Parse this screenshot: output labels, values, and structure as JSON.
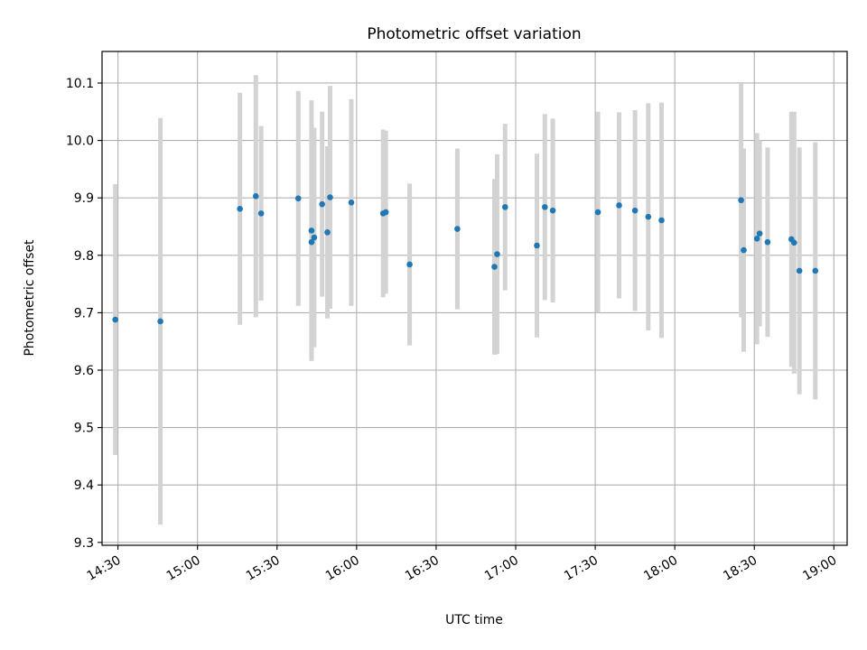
{
  "chart_data": {
    "type": "scatter",
    "title": "Photometric offset variation",
    "xlabel": "UTC time",
    "ylabel": "Photometric offset",
    "x_is_time": true,
    "xlim": [
      "14:24",
      "19:05"
    ],
    "ylim": [
      9.295,
      10.155
    ],
    "grid": true,
    "x_ticks": [
      "14:30",
      "15:00",
      "15:30",
      "16:00",
      "16:30",
      "17:00",
      "17:30",
      "18:00",
      "18:30",
      "19:00"
    ],
    "y_ticks": [
      9.3,
      9.4,
      9.5,
      9.6,
      9.7,
      9.8,
      9.9,
      10.0,
      10.1
    ],
    "y_tick_labels": [
      "9.3",
      "9.4",
      "9.5",
      "9.6",
      "9.7",
      "9.8",
      "9.9",
      "10.0",
      "10.1"
    ],
    "colors": {
      "point": "#1f77b4",
      "errorbar": "#d3d3d3",
      "grid": "#b0b0b0"
    },
    "points": [
      {
        "t": "14:29",
        "y": 9.688,
        "err": 0.236
      },
      {
        "t": "14:46",
        "y": 9.685,
        "err": 0.354
      },
      {
        "t": "15:16",
        "y": 9.881,
        "err": 0.202
      },
      {
        "t": "15:22",
        "y": 9.903,
        "err": 0.211
      },
      {
        "t": "15:24",
        "y": 9.873,
        "err": 0.152
      },
      {
        "t": "15:38",
        "y": 9.899,
        "err": 0.187
      },
      {
        "t": "15:43",
        "y": 9.843,
        "err": 0.227
      },
      {
        "t": "15:43",
        "y": 9.823,
        "err": 0.202
      },
      {
        "t": "15:44",
        "y": 9.831,
        "err": 0.191
      },
      {
        "t": "15:47",
        "y": 9.889,
        "err": 0.161
      },
      {
        "t": "15:49",
        "y": 9.84,
        "err": 0.15
      },
      {
        "t": "15:50",
        "y": 9.901,
        "err": 0.194
      },
      {
        "t": "15:58",
        "y": 9.892,
        "err": 0.18
      },
      {
        "t": "16:10",
        "y": 9.873,
        "err": 0.146
      },
      {
        "t": "16:11",
        "y": 9.875,
        "err": 0.142
      },
      {
        "t": "16:20",
        "y": 9.784,
        "err": 0.141
      },
      {
        "t": "16:38",
        "y": 9.846,
        "err": 0.14
      },
      {
        "t": "16:52",
        "y": 9.78,
        "err": 0.153
      },
      {
        "t": "16:53",
        "y": 9.802,
        "err": 0.174
      },
      {
        "t": "16:56",
        "y": 9.884,
        "err": 0.145
      },
      {
        "t": "17:08",
        "y": 9.817,
        "err": 0.16
      },
      {
        "t": "17:11",
        "y": 9.884,
        "err": 0.162
      },
      {
        "t": "17:14",
        "y": 9.878,
        "err": 0.16
      },
      {
        "t": "17:31",
        "y": 9.875,
        "err": 0.175
      },
      {
        "t": "17:39",
        "y": 9.887,
        "err": 0.162
      },
      {
        "t": "17:45",
        "y": 9.878,
        "err": 0.175
      },
      {
        "t": "17:50",
        "y": 9.867,
        "err": 0.198
      },
      {
        "t": "17:55",
        "y": 9.861,
        "err": 0.205
      },
      {
        "t": "18:25",
        "y": 9.896,
        "err": 0.204
      },
      {
        "t": "18:26",
        "y": 9.809,
        "err": 0.177
      },
      {
        "t": "18:31",
        "y": 9.829,
        "err": 0.184
      },
      {
        "t": "18:32",
        "y": 9.838,
        "err": 0.162
      },
      {
        "t": "18:35",
        "y": 9.823,
        "err": 0.165
      },
      {
        "t": "18:44",
        "y": 9.828,
        "err": 0.222
      },
      {
        "t": "18:45",
        "y": 9.822,
        "err": 0.228
      },
      {
        "t": "18:47",
        "y": 9.773,
        "err": 0.215
      },
      {
        "t": "18:53",
        "y": 9.773,
        "err": 0.224
      }
    ]
  }
}
